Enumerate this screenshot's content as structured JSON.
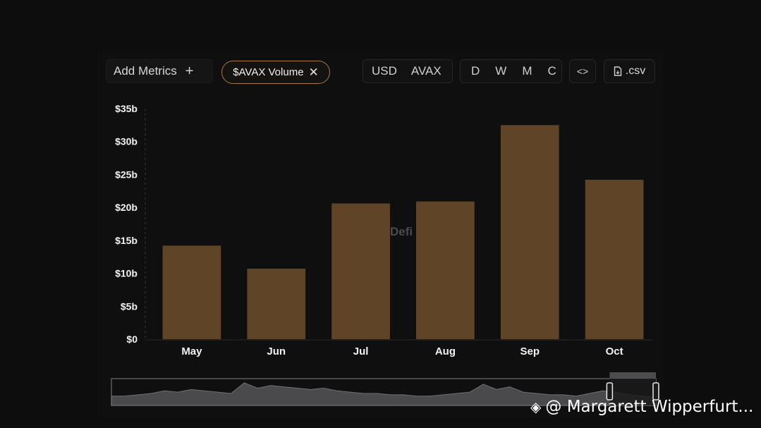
{
  "toolbar": {
    "add_metrics_label": "Add Metrics",
    "add_icon": "plus-icon",
    "metric_chip_label": "$AVAX Volume",
    "chip_close_icon": "close-icon",
    "currency_options": [
      "USD",
      "AVAX"
    ],
    "period_options": [
      "D",
      "W",
      "M",
      "C"
    ],
    "embed_icon": "code-icon",
    "csv_label": ".csv",
    "csv_icon": "file-icon"
  },
  "watermark_text": "Defi",
  "credit": {
    "logo_icon": "binance-logo-icon",
    "text": "@ Margarett Wipperfurt..."
  },
  "colors": {
    "bar": "#5f4428",
    "chip_border": "#a57a47",
    "background": "#0f0f10"
  },
  "chart_data": {
    "type": "bar",
    "categories": [
      "May",
      "Jun",
      "Jul",
      "Aug",
      "Sep",
      "Oct"
    ],
    "values": [
      14.2,
      10.7,
      20.6,
      20.9,
      32.5,
      24.2
    ],
    "y_ticks": [
      "$0",
      "$5b",
      "$10b",
      "$15b",
      "$20b",
      "$25b",
      "$30b",
      "$35b"
    ],
    "ylim": [
      0,
      35
    ],
    "y_unit": "billions USD",
    "grid": false,
    "title": "",
    "xlabel": "",
    "ylabel": ""
  },
  "brush_overview": {
    "type": "area",
    "values": [
      6,
      6,
      7,
      8,
      10,
      9,
      11,
      10,
      9,
      8,
      16,
      12,
      14,
      13,
      12,
      11,
      12,
      10,
      9,
      8,
      8,
      7,
      7,
      6,
      6,
      7,
      8,
      9,
      15,
      11,
      13,
      9,
      8,
      7,
      7,
      6,
      8,
      10,
      9,
      7,
      6,
      5
    ],
    "selection_start_fraction": 0.915,
    "selection_end_fraction": 1.0
  }
}
